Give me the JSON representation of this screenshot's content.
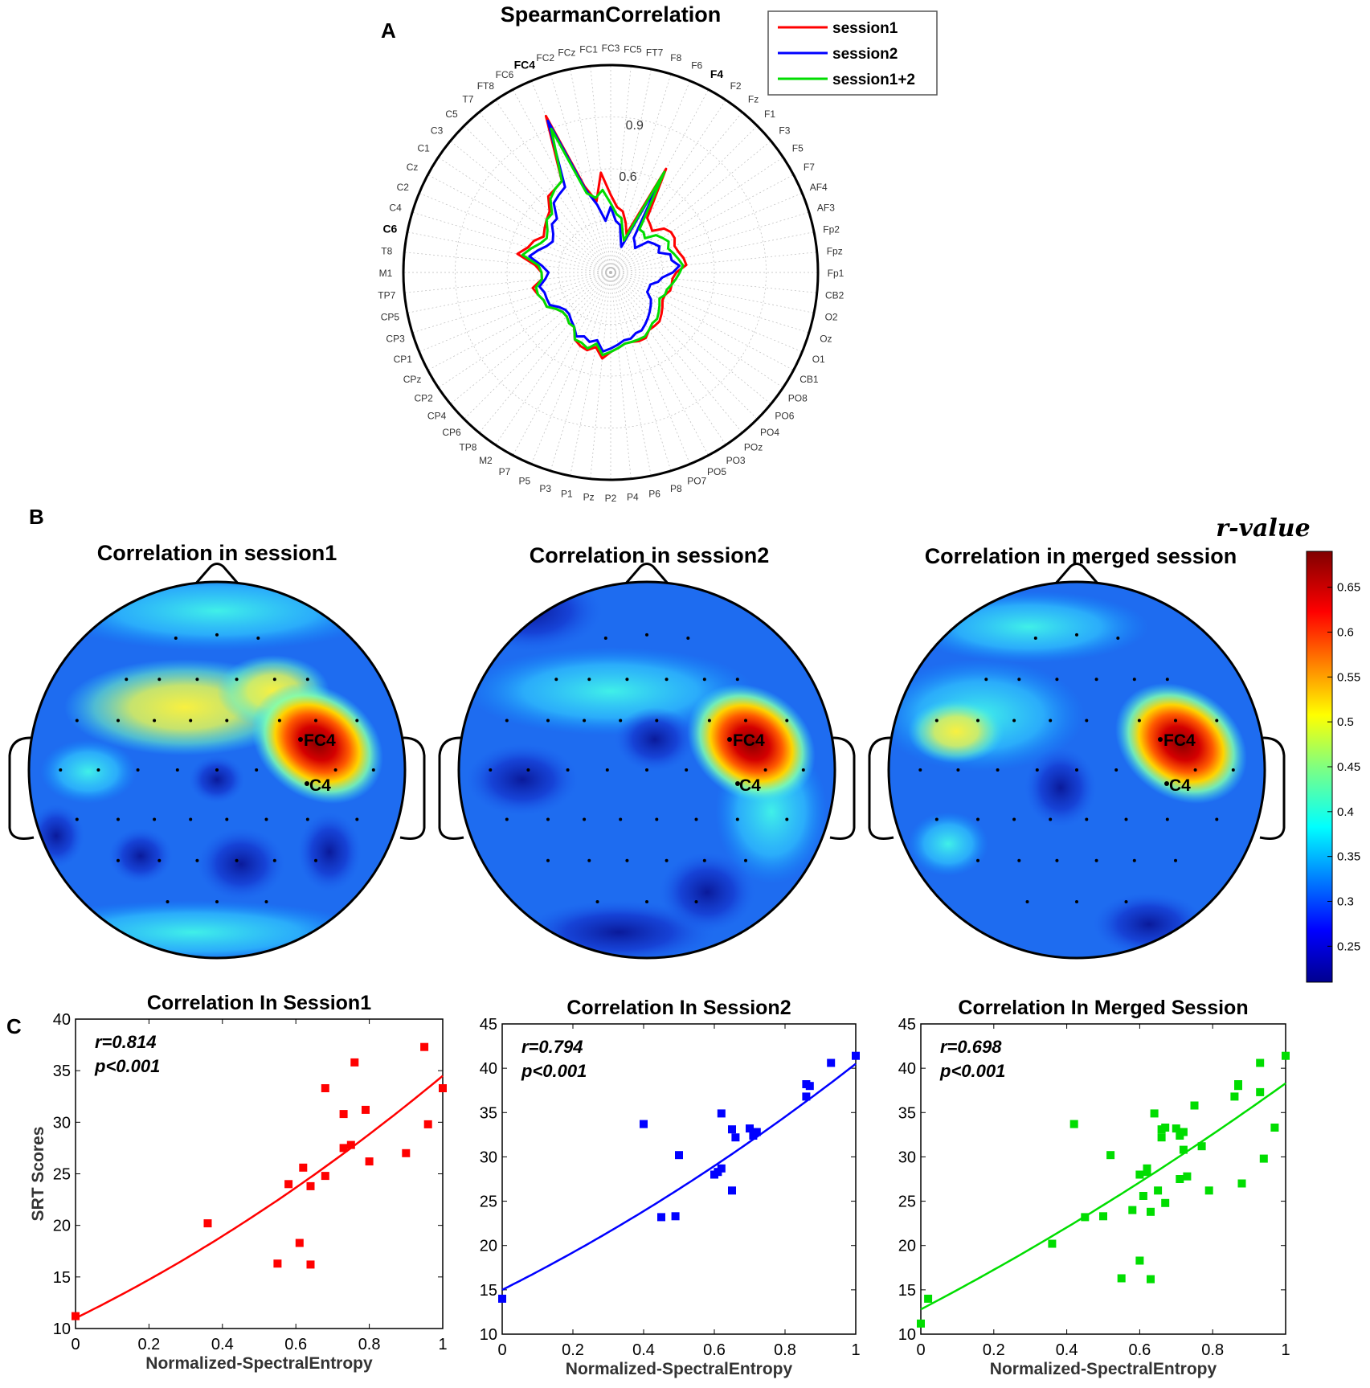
{
  "panels": {
    "a": "A",
    "b": "B",
    "c": "C"
  },
  "chart_data": [
    {
      "type": "radar",
      "title": "SpearmanCorrelation",
      "channels": [
        "FC3",
        "FC5",
        "FT7",
        "F8",
        "F6",
        "F4",
        "F2",
        "Fz",
        "F1",
        "F3",
        "F5",
        "F7",
        "AF4",
        "AF3",
        "Fp2",
        "Fpz",
        "Fp1",
        "CB2",
        "O2",
        "Oz",
        "O1",
        "CB1",
        "PO8",
        "PO6",
        "PO4",
        "POz",
        "PO3",
        "PO5",
        "PO7",
        "P8",
        "P6",
        "P4",
        "P2",
        "Pz",
        "P1",
        "P3",
        "P5",
        "P7",
        "M2",
        "TP8",
        "CP6",
        "CP4",
        "CP2",
        "CPz",
        "CP1",
        "CP3",
        "CP5",
        "TP7",
        "M1",
        "T8",
        "C6",
        "C4",
        "C2",
        "Cz",
        "C1",
        "C3",
        "C5",
        "T7",
        "FT8",
        "FC6",
        "FC4",
        "FC2",
        "FCz",
        "FC1"
      ],
      "bold_channels": [
        "F4",
        "C6",
        "FC4"
      ],
      "rlabels": [
        "0.6",
        "0.9"
      ],
      "rmax": 1.2,
      "legend": [
        "session1",
        "session2",
        "session1+2"
      ],
      "series": [
        {
          "name": "session1",
          "color": "#ff0000",
          "values": [
            0.45,
            0.38,
            0.36,
            0.3,
            0.24,
            0.68,
            0.38,
            0.36,
            0.34,
            0.4,
            0.42,
            0.42,
            0.4,
            0.41,
            0.43,
            0.44,
            0.38,
            0.36,
            0.36,
            0.36,
            0.34,
            0.34,
            0.36,
            0.38,
            0.4,
            0.4,
            0.4,
            0.43,
            0.43,
            0.42,
            0.42,
            0.44,
            0.46,
            0.5,
            0.44,
            0.47,
            0.46,
            0.44,
            0.38,
            0.38,
            0.36,
            0.36,
            0.38,
            0.42,
            0.42,
            0.44,
            0.46,
            0.4,
            0.4,
            0.44,
            0.55,
            0.5,
            0.48,
            0.44,
            0.46,
            0.48,
            0.5,
            0.57,
            0.58,
            0.6,
            0.98,
            0.52,
            0.42,
            0.58
          ]
        },
        {
          "name": "session2",
          "color": "#0000ff",
          "values": [
            0.38,
            0.3,
            0.28,
            0.2,
            0.16,
            0.62,
            0.24,
            0.22,
            0.2,
            0.28,
            0.3,
            0.32,
            0.3,
            0.36,
            0.36,
            0.4,
            0.36,
            0.3,
            0.28,
            0.24,
            0.24,
            0.24,
            0.28,
            0.3,
            0.32,
            0.34,
            0.36,
            0.38,
            0.38,
            0.4,
            0.4,
            0.42,
            0.44,
            0.46,
            0.4,
            0.42,
            0.4,
            0.42,
            0.38,
            0.36,
            0.34,
            0.34,
            0.36,
            0.4,
            0.4,
            0.4,
            0.42,
            0.38,
            0.36,
            0.4,
            0.48,
            0.44,
            0.4,
            0.38,
            0.4,
            0.44,
            0.44,
            0.52,
            0.54,
            0.56,
            0.95,
            0.5,
            0.4,
            0.3
          ]
        },
        {
          "name": "session1+2",
          "color": "#00dd00",
          "values": [
            0.4,
            0.34,
            0.32,
            0.24,
            0.2,
            0.66,
            0.3,
            0.3,
            0.28,
            0.34,
            0.36,
            0.38,
            0.36,
            0.38,
            0.4,
            0.42,
            0.4,
            0.38,
            0.36,
            0.34,
            0.34,
            0.32,
            0.34,
            0.36,
            0.38,
            0.38,
            0.4,
            0.42,
            0.42,
            0.42,
            0.42,
            0.44,
            0.46,
            0.48,
            0.42,
            0.46,
            0.44,
            0.44,
            0.38,
            0.38,
            0.36,
            0.36,
            0.38,
            0.42,
            0.42,
            0.44,
            0.44,
            0.4,
            0.4,
            0.42,
            0.52,
            0.48,
            0.44,
            0.42,
            0.44,
            0.48,
            0.48,
            0.55,
            0.58,
            0.6,
            0.9,
            0.48,
            0.44,
            0.48
          ]
        }
      ]
    },
    {
      "type": "heatmap",
      "topomaps": [
        {
          "title": "Correlation in session1",
          "labels": [
            "FC4",
            "C4"
          ]
        },
        {
          "title": "Correlation in session2",
          "labels": [
            "FC4",
            "C4"
          ]
        },
        {
          "title": "Correlation in merged session",
          "labels": [
            "FC4",
            "C4"
          ]
        }
      ],
      "colorbar": {
        "title": "r-value",
        "ticks": [
          "0.25",
          "0.3",
          "0.35",
          "0.4",
          "0.45",
          "0.5",
          "0.55",
          "0.6",
          "0.65"
        ],
        "min": 0.21,
        "max": 0.69
      }
    },
    {
      "type": "scatter",
      "title": "Correlation In Session1",
      "color": "#ff0000",
      "r": "r=0.814",
      "p": "p<0.001",
      "xlabel": "Normalized-SpectralEntropy",
      "ylabel": "SRT Scores",
      "xlim": [
        0,
        1
      ],
      "ylim": [
        10,
        40
      ],
      "xticks": [
        "0",
        "0.2",
        "0.4",
        "0.6",
        "0.8",
        "1"
      ],
      "yticks": [
        "10",
        "15",
        "20",
        "25",
        "30",
        "35",
        "40"
      ],
      "fit": [
        11.0,
        17.5,
        6.0
      ],
      "points": [
        [
          0.0,
          11.2
        ],
        [
          0.36,
          20.2
        ],
        [
          0.55,
          16.3
        ],
        [
          0.58,
          24.0
        ],
        [
          0.61,
          18.3
        ],
        [
          0.62,
          25.6
        ],
        [
          0.64,
          16.2
        ],
        [
          0.64,
          23.8
        ],
        [
          0.68,
          33.3
        ],
        [
          0.68,
          24.8
        ],
        [
          0.73,
          30.8
        ],
        [
          0.73,
          27.5
        ],
        [
          0.75,
          27.8
        ],
        [
          0.76,
          35.8
        ],
        [
          0.79,
          31.2
        ],
        [
          0.8,
          26.2
        ],
        [
          0.9,
          27.0
        ],
        [
          0.95,
          37.3
        ],
        [
          0.96,
          29.8
        ],
        [
          1.0,
          33.3
        ]
      ]
    },
    {
      "type": "scatter",
      "title": "Correlation In Session2",
      "color": "#0000ff",
      "r": "r=0.794",
      "p": "p<0.001",
      "xlabel": "Normalized-SpectralEntropy",
      "ylabel": "",
      "xlim": [
        0,
        1
      ],
      "ylim": [
        10,
        45
      ],
      "xticks": [
        "0",
        "0.2",
        "0.4",
        "0.6",
        "0.8",
        "1"
      ],
      "yticks": [
        "10",
        "15",
        "20",
        "25",
        "30",
        "35",
        "40",
        "45"
      ],
      "fit": [
        15.0,
        20.0,
        5.5
      ],
      "points": [
        [
          0.0,
          14.0
        ],
        [
          0.4,
          33.7
        ],
        [
          0.45,
          23.2
        ],
        [
          0.49,
          23.3
        ],
        [
          0.5,
          30.2
        ],
        [
          0.6,
          28.0
        ],
        [
          0.61,
          28.3
        ],
        [
          0.62,
          28.7
        ],
        [
          0.62,
          34.9
        ],
        [
          0.65,
          33.1
        ],
        [
          0.65,
          26.2
        ],
        [
          0.66,
          32.2
        ],
        [
          0.7,
          33.2
        ],
        [
          0.71,
          32.4
        ],
        [
          0.72,
          32.8
        ],
        [
          0.86,
          36.8
        ],
        [
          0.86,
          38.2
        ],
        [
          0.87,
          38.0
        ],
        [
          0.93,
          40.6
        ],
        [
          1.0,
          41.4
        ]
      ]
    },
    {
      "type": "scatter",
      "title": "Correlation In Merged Session",
      "color": "#00dd00",
      "r": "r=0.698",
      "p": "p<0.001",
      "xlabel": "Normalized-SpectralEntropy",
      "ylabel": "",
      "xlim": [
        0,
        1
      ],
      "ylim": [
        10,
        45
      ],
      "xticks": [
        "0",
        "0.2",
        "0.4",
        "0.6",
        "0.8",
        "1"
      ],
      "yticks": [
        "10",
        "15",
        "20",
        "25",
        "30",
        "35",
        "40",
        "45"
      ],
      "fit": [
        12.8,
        21.5,
        4.0
      ],
      "points": [
        [
          0.0,
          11.2
        ],
        [
          0.02,
          14.0
        ],
        [
          0.36,
          20.2
        ],
        [
          0.42,
          33.7
        ],
        [
          0.45,
          23.2
        ],
        [
          0.5,
          23.3
        ],
        [
          0.52,
          30.2
        ],
        [
          0.55,
          16.3
        ],
        [
          0.58,
          24.0
        ],
        [
          0.6,
          18.3
        ],
        [
          0.6,
          28.0
        ],
        [
          0.61,
          25.6
        ],
        [
          0.62,
          28.3
        ],
        [
          0.62,
          28.7
        ],
        [
          0.63,
          16.2
        ],
        [
          0.63,
          23.8
        ],
        [
          0.64,
          34.9
        ],
        [
          0.65,
          26.2
        ],
        [
          0.66,
          33.1
        ],
        [
          0.66,
          32.2
        ],
        [
          0.67,
          33.3
        ],
        [
          0.67,
          24.8
        ],
        [
          0.7,
          33.2
        ],
        [
          0.71,
          27.5
        ],
        [
          0.71,
          32.4
        ],
        [
          0.72,
          30.8
        ],
        [
          0.72,
          32.8
        ],
        [
          0.73,
          27.8
        ],
        [
          0.75,
          35.8
        ],
        [
          0.77,
          31.2
        ],
        [
          0.79,
          26.2
        ],
        [
          0.86,
          36.8
        ],
        [
          0.87,
          38.2
        ],
        [
          0.87,
          38.0
        ],
        [
          0.88,
          27.0
        ],
        [
          0.93,
          37.3
        ],
        [
          0.93,
          40.6
        ],
        [
          0.94,
          29.8
        ],
        [
          0.97,
          33.3
        ],
        [
          1.0,
          41.4
        ]
      ]
    }
  ]
}
